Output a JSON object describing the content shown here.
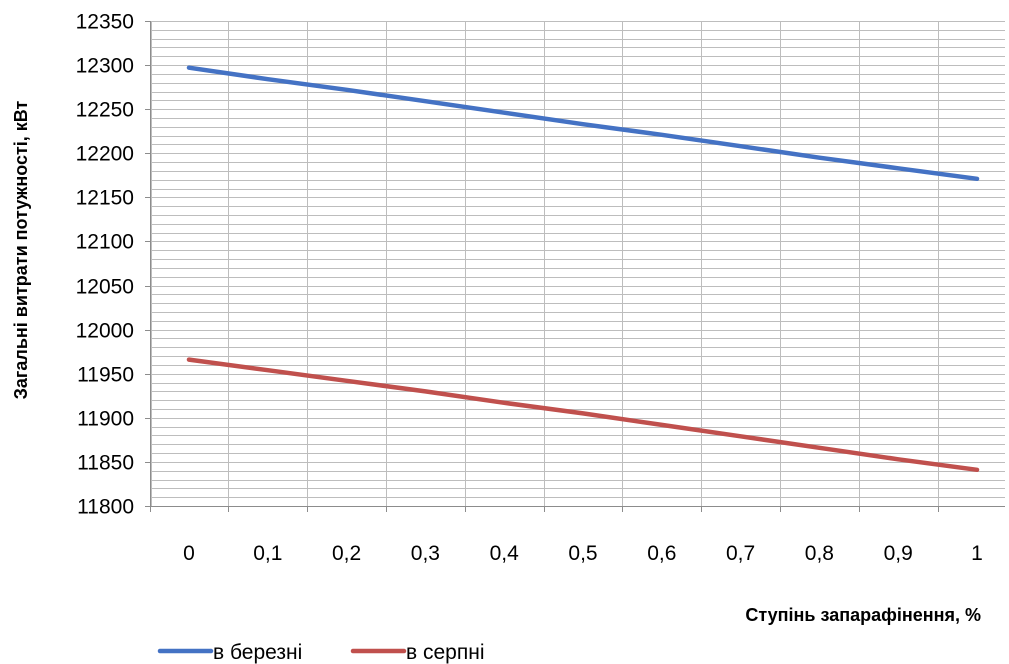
{
  "chart_data": {
    "type": "line",
    "title": "",
    "xlabel": "Ступінь запарафінення, %",
    "ylabel": "Загальні витрати потужності, кВт",
    "x": [
      0,
      0.1,
      0.2,
      0.3,
      0.4,
      0.5,
      0.6,
      0.7,
      0.8,
      0.9,
      1
    ],
    "x_tick_labels": [
      "0",
      "0,1",
      "0,2",
      "0,3",
      "0,4",
      "0,5",
      "0,6",
      "0,7",
      "0,8",
      "0,9",
      "1"
    ],
    "y_ticks": [
      11800,
      11850,
      11900,
      11950,
      12000,
      12050,
      12100,
      12150,
      12200,
      12250,
      12300,
      12350
    ],
    "y_tick_labels": [
      "11800",
      "11850",
      "11900",
      "11950",
      "12000",
      "12050",
      "12100",
      "12150",
      "12200",
      "12250",
      "12300",
      "12350"
    ],
    "ylim": [
      11800,
      12350
    ],
    "y_minor_step": 10,
    "grid": true,
    "legend_position": "bottom-left",
    "series": [
      {
        "name": "в березні",
        "color": "#4472C4",
        "values": [
          12297,
          12284,
          12272,
          12259,
          12246,
          12233,
          12221,
          12208,
          12195,
          12183,
          12171
        ]
      },
      {
        "name": "в серпні",
        "color": "#C0504D",
        "values": [
          11966,
          11954,
          11942,
          11930,
          11917,
          11905,
          11892,
          11879,
          11866,
          11853,
          11841
        ]
      }
    ]
  }
}
